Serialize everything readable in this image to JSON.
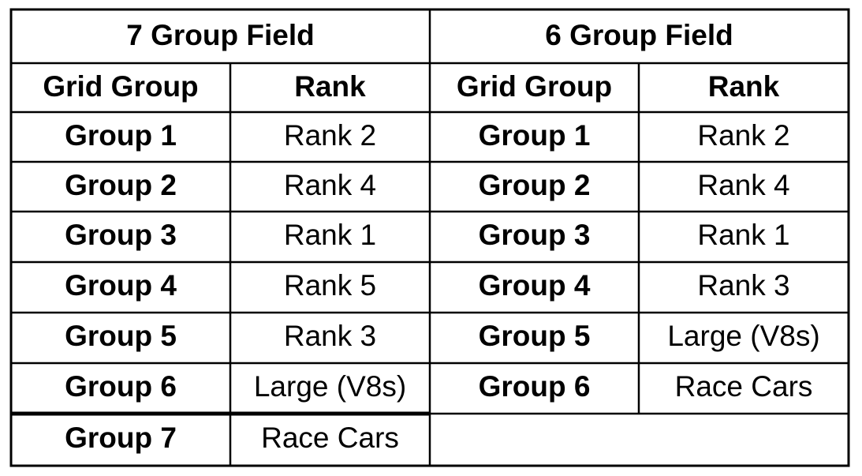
{
  "tables": [
    {
      "title": "7 Group Field",
      "header": [
        "Grid Group",
        "Rank"
      ],
      "rows": [
        [
          "Group 1",
          "Rank 2"
        ],
        [
          "Group 2",
          "Rank 4"
        ],
        [
          "Group 3",
          "Rank 1"
        ],
        [
          "Group 4",
          "Rank 5"
        ],
        [
          "Group 5",
          "Rank 3"
        ],
        [
          "Group 6",
          "Large (V8s)"
        ],
        [
          "Group 7",
          "Race Cars"
        ]
      ]
    },
    {
      "title": "6 Group Field",
      "header": [
        "Grid Group",
        "Rank"
      ],
      "rows": [
        [
          "Group 1",
          "Rank 2"
        ],
        [
          "Group 2",
          "Rank 4"
        ],
        [
          "Group 3",
          "Rank 1"
        ],
        [
          "Group 4",
          "Rank 3"
        ],
        [
          "Group 5",
          "Large (V8s)"
        ],
        [
          "Group 6",
          "Race Cars"
        ]
      ]
    }
  ]
}
